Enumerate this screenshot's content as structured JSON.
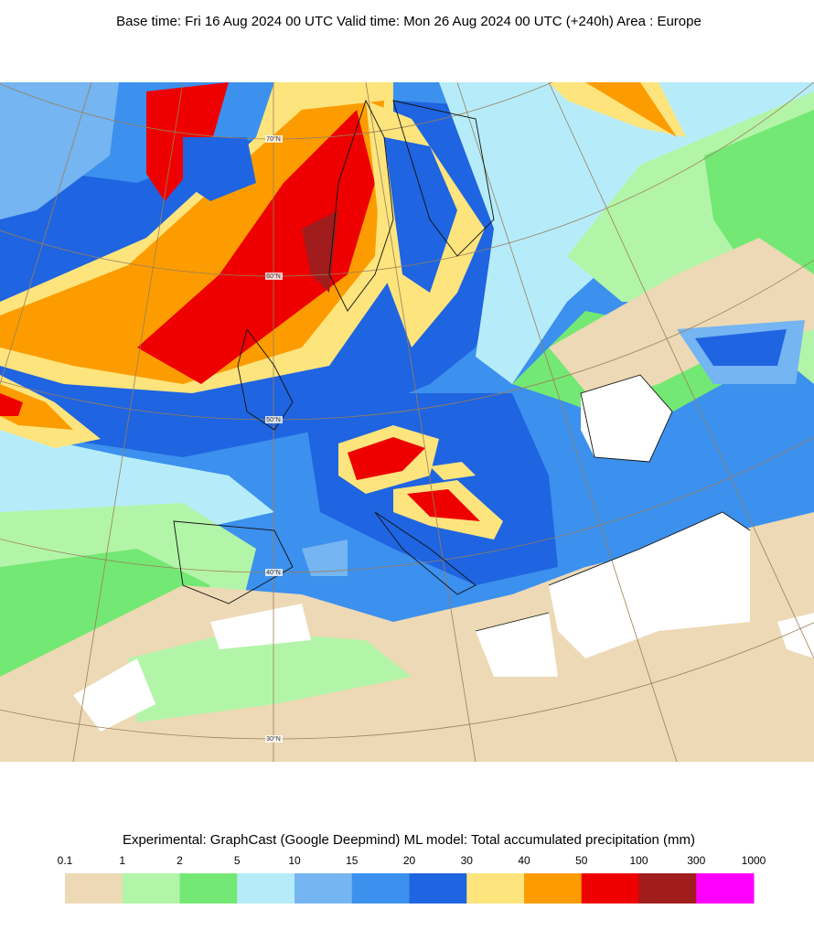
{
  "header": {
    "title": "Base time: Fri 16 Aug 2024 00 UTC Valid time: Mon 26 Aug 2024 00 UTC (+240h) Area : Europe"
  },
  "map": {
    "latitude_labels": [
      "70°N",
      "60°N",
      "50°N",
      "40°N",
      "30°N"
    ]
  },
  "legend": {
    "title": "Experimental: GraphCast (Google Deepmind) ML model: Total accumulated precipitation (mm)",
    "levels": [
      0.1,
      1,
      2,
      5,
      10,
      15,
      20,
      30,
      40,
      50,
      100,
      300,
      1000
    ],
    "colors": [
      "#edd9b5",
      "#b3f5a8",
      "#74e874",
      "#b6ecfa",
      "#74b5f2",
      "#3c90ee",
      "#1f64e0",
      "#fde47d",
      "#fd9c00",
      "#ee0000",
      "#a11c1c",
      "#ff00ff"
    ]
  }
}
